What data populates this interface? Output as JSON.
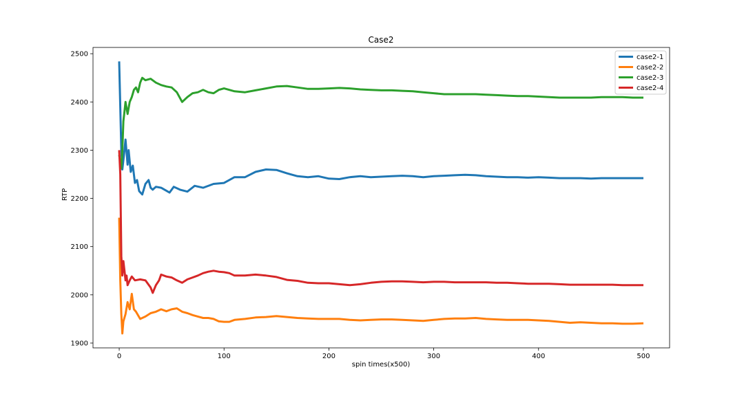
{
  "chart_data": {
    "type": "line",
    "title": "Case2",
    "xlabel": "spin times(x500)",
    "ylabel": "RTP",
    "xlim": [
      -25,
      525
    ],
    "ylim": [
      1890,
      2513
    ],
    "xticks": [
      0,
      100,
      200,
      300,
      400,
      500
    ],
    "yticks": [
      1900,
      2000,
      2100,
      2200,
      2300,
      2400,
      2500
    ],
    "legend_position": "upper-right",
    "grid": false,
    "series": [
      {
        "name": "case2-1",
        "color": "#1f77b4",
        "points": [
          [
            0,
            2484
          ],
          [
            2,
            2300
          ],
          [
            3,
            2260
          ],
          [
            5,
            2300
          ],
          [
            6,
            2322
          ],
          [
            8,
            2270
          ],
          [
            9,
            2300
          ],
          [
            11,
            2255
          ],
          [
            13,
            2268
          ],
          [
            15,
            2232
          ],
          [
            17,
            2238
          ],
          [
            19,
            2215
          ],
          [
            22,
            2208
          ],
          [
            25,
            2230
          ],
          [
            28,
            2238
          ],
          [
            30,
            2222
          ],
          [
            32,
            2218
          ],
          [
            35,
            2224
          ],
          [
            40,
            2222
          ],
          [
            48,
            2212
          ],
          [
            52,
            2224
          ],
          [
            58,
            2218
          ],
          [
            65,
            2214
          ],
          [
            72,
            2226
          ],
          [
            80,
            2222
          ],
          [
            90,
            2230
          ],
          [
            100,
            2232
          ],
          [
            110,
            2244
          ],
          [
            120,
            2244
          ],
          [
            130,
            2255
          ],
          [
            140,
            2260
          ],
          [
            150,
            2259
          ],
          [
            160,
            2252
          ],
          [
            170,
            2246
          ],
          [
            180,
            2244
          ],
          [
            190,
            2246
          ],
          [
            200,
            2241
          ],
          [
            210,
            2240
          ],
          [
            220,
            2244
          ],
          [
            230,
            2246
          ],
          [
            240,
            2244
          ],
          [
            250,
            2245
          ],
          [
            260,
            2246
          ],
          [
            270,
            2247
          ],
          [
            280,
            2246
          ],
          [
            290,
            2244
          ],
          [
            300,
            2246
          ],
          [
            310,
            2247
          ],
          [
            320,
            2248
          ],
          [
            330,
            2249
          ],
          [
            340,
            2248
          ],
          [
            350,
            2246
          ],
          [
            360,
            2245
          ],
          [
            370,
            2244
          ],
          [
            380,
            2244
          ],
          [
            390,
            2243
          ],
          [
            400,
            2244
          ],
          [
            410,
            2243
          ],
          [
            420,
            2242
          ],
          [
            430,
            2242
          ],
          [
            440,
            2242
          ],
          [
            450,
            2241
          ],
          [
            460,
            2242
          ],
          [
            470,
            2242
          ],
          [
            480,
            2242
          ],
          [
            490,
            2242
          ],
          [
            500,
            2242
          ]
        ]
      },
      {
        "name": "case2-2",
        "color": "#ff7f0e",
        "points": [
          [
            0,
            2160
          ],
          [
            1,
            2030
          ],
          [
            2,
            1960
          ],
          [
            3,
            1920
          ],
          [
            4,
            1945
          ],
          [
            6,
            1960
          ],
          [
            8,
            1985
          ],
          [
            10,
            1970
          ],
          [
            12,
            2002
          ],
          [
            14,
            1970
          ],
          [
            16,
            1965
          ],
          [
            20,
            1950
          ],
          [
            25,
            1955
          ],
          [
            30,
            1962
          ],
          [
            35,
            1965
          ],
          [
            40,
            1970
          ],
          [
            45,
            1966
          ],
          [
            50,
            1970
          ],
          [
            55,
            1972
          ],
          [
            60,
            1965
          ],
          [
            65,
            1962
          ],
          [
            70,
            1958
          ],
          [
            75,
            1955
          ],
          [
            80,
            1952
          ],
          [
            85,
            1952
          ],
          [
            90,
            1950
          ],
          [
            95,
            1945
          ],
          [
            100,
            1944
          ],
          [
            105,
            1944
          ],
          [
            110,
            1948
          ],
          [
            120,
            1950
          ],
          [
            130,
            1953
          ],
          [
            140,
            1954
          ],
          [
            150,
            1956
          ],
          [
            160,
            1954
          ],
          [
            170,
            1952
          ],
          [
            180,
            1951
          ],
          [
            190,
            1950
          ],
          [
            200,
            1950
          ],
          [
            210,
            1950
          ],
          [
            220,
            1948
          ],
          [
            230,
            1947
          ],
          [
            240,
            1948
          ],
          [
            250,
            1949
          ],
          [
            260,
            1949
          ],
          [
            270,
            1948
          ],
          [
            280,
            1947
          ],
          [
            290,
            1946
          ],
          [
            300,
            1948
          ],
          [
            310,
            1950
          ],
          [
            320,
            1951
          ],
          [
            330,
            1951
          ],
          [
            340,
            1952
          ],
          [
            350,
            1950
          ],
          [
            360,
            1949
          ],
          [
            370,
            1948
          ],
          [
            380,
            1948
          ],
          [
            390,
            1948
          ],
          [
            400,
            1947
          ],
          [
            410,
            1946
          ],
          [
            420,
            1944
          ],
          [
            430,
            1942
          ],
          [
            440,
            1943
          ],
          [
            450,
            1942
          ],
          [
            460,
            1941
          ],
          [
            470,
            1941
          ],
          [
            480,
            1940
          ],
          [
            490,
            1940
          ],
          [
            500,
            1941
          ]
        ]
      },
      {
        "name": "case2-3",
        "color": "#2ca02c",
        "points": [
          [
            0,
            2290
          ],
          [
            2,
            2262
          ],
          [
            3,
            2300
          ],
          [
            4,
            2360
          ],
          [
            5,
            2380
          ],
          [
            6,
            2400
          ],
          [
            8,
            2375
          ],
          [
            10,
            2400
          ],
          [
            12,
            2410
          ],
          [
            14,
            2425
          ],
          [
            16,
            2430
          ],
          [
            18,
            2420
          ],
          [
            20,
            2440
          ],
          [
            22,
            2450
          ],
          [
            25,
            2445
          ],
          [
            30,
            2448
          ],
          [
            35,
            2440
          ],
          [
            40,
            2435
          ],
          [
            45,
            2432
          ],
          [
            50,
            2430
          ],
          [
            55,
            2420
          ],
          [
            60,
            2400
          ],
          [
            65,
            2410
          ],
          [
            70,
            2418
          ],
          [
            75,
            2420
          ],
          [
            80,
            2425
          ],
          [
            85,
            2420
          ],
          [
            90,
            2418
          ],
          [
            95,
            2425
          ],
          [
            100,
            2428
          ],
          [
            105,
            2425
          ],
          [
            110,
            2422
          ],
          [
            120,
            2420
          ],
          [
            130,
            2424
          ],
          [
            140,
            2428
          ],
          [
            150,
            2432
          ],
          [
            160,
            2433
          ],
          [
            170,
            2430
          ],
          [
            180,
            2427
          ],
          [
            190,
            2427
          ],
          [
            200,
            2428
          ],
          [
            210,
            2429
          ],
          [
            220,
            2428
          ],
          [
            230,
            2426
          ],
          [
            240,
            2425
          ],
          [
            250,
            2424
          ],
          [
            260,
            2424
          ],
          [
            270,
            2423
          ],
          [
            280,
            2422
          ],
          [
            290,
            2420
          ],
          [
            300,
            2418
          ],
          [
            310,
            2416
          ],
          [
            320,
            2416
          ],
          [
            330,
            2416
          ],
          [
            340,
            2416
          ],
          [
            350,
            2415
          ],
          [
            360,
            2414
          ],
          [
            370,
            2413
          ],
          [
            380,
            2412
          ],
          [
            390,
            2412
          ],
          [
            400,
            2411
          ],
          [
            410,
            2410
          ],
          [
            420,
            2409
          ],
          [
            430,
            2409
          ],
          [
            440,
            2409
          ],
          [
            450,
            2409
          ],
          [
            460,
            2410
          ],
          [
            470,
            2410
          ],
          [
            480,
            2410
          ],
          [
            490,
            2409
          ],
          [
            500,
            2409
          ]
        ]
      },
      {
        "name": "case2-4",
        "color": "#d62728",
        "points": [
          [
            0,
            2300
          ],
          [
            1,
            2250
          ],
          [
            2,
            2080
          ],
          [
            3,
            2040
          ],
          [
            4,
            2070
          ],
          [
            5,
            2050
          ],
          [
            6,
            2030
          ],
          [
            7,
            2040
          ],
          [
            8,
            2020
          ],
          [
            10,
            2030
          ],
          [
            12,
            2038
          ],
          [
            15,
            2030
          ],
          [
            20,
            2032
          ],
          [
            25,
            2030
          ],
          [
            30,
            2015
          ],
          [
            32,
            2004
          ],
          [
            35,
            2020
          ],
          [
            38,
            2030
          ],
          [
            40,
            2042
          ],
          [
            45,
            2038
          ],
          [
            50,
            2036
          ],
          [
            55,
            2030
          ],
          [
            60,
            2025
          ],
          [
            65,
            2032
          ],
          [
            70,
            2036
          ],
          [
            75,
            2040
          ],
          [
            80,
            2045
          ],
          [
            85,
            2048
          ],
          [
            90,
            2050
          ],
          [
            95,
            2048
          ],
          [
            100,
            2047
          ],
          [
            105,
            2045
          ],
          [
            110,
            2040
          ],
          [
            120,
            2040
          ],
          [
            130,
            2042
          ],
          [
            140,
            2040
          ],
          [
            150,
            2037
          ],
          [
            160,
            2031
          ],
          [
            170,
            2029
          ],
          [
            180,
            2025
          ],
          [
            190,
            2024
          ],
          [
            200,
            2024
          ],
          [
            210,
            2022
          ],
          [
            220,
            2020
          ],
          [
            230,
            2022
          ],
          [
            240,
            2025
          ],
          [
            250,
            2027
          ],
          [
            260,
            2028
          ],
          [
            270,
            2028
          ],
          [
            280,
            2027
          ],
          [
            290,
            2026
          ],
          [
            300,
            2027
          ],
          [
            310,
            2027
          ],
          [
            320,
            2026
          ],
          [
            330,
            2026
          ],
          [
            340,
            2026
          ],
          [
            350,
            2026
          ],
          [
            360,
            2025
          ],
          [
            370,
            2025
          ],
          [
            380,
            2024
          ],
          [
            390,
            2023
          ],
          [
            400,
            2023
          ],
          [
            410,
            2023
          ],
          [
            420,
            2022
          ],
          [
            430,
            2021
          ],
          [
            440,
            2021
          ],
          [
            450,
            2021
          ],
          [
            460,
            2021
          ],
          [
            470,
            2021
          ],
          [
            480,
            2020
          ],
          [
            490,
            2020
          ],
          [
            500,
            2020
          ]
        ]
      }
    ]
  }
}
